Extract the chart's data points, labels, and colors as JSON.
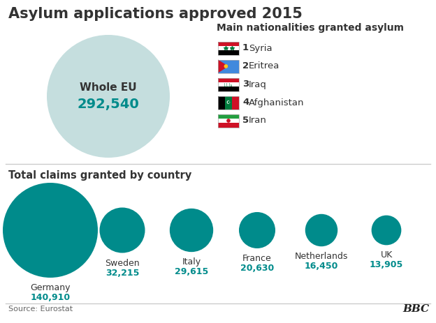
{
  "title": "Asylum applications approved 2015",
  "top_section_subtitle": "Main nationalities granted asylum",
  "whole_eu_label": "Whole EU",
  "whole_eu_value": "292,540",
  "eu_circle_color": "#c5dede",
  "teal_color": "#008b8b",
  "nationalities": [
    {
      "rank": "1",
      "name": "Syria"
    },
    {
      "rank": "2",
      "name": "Eritrea"
    },
    {
      "rank": "3",
      "name": "Iraq"
    },
    {
      "rank": "4",
      "name": "Afghanistan"
    },
    {
      "rank": "5",
      "name": "Iran"
    }
  ],
  "flag_data": {
    "Syria": {
      "stripes": [
        "#ce1126",
        "#ffffff",
        "#000000"
      ],
      "emblem": "star_green"
    },
    "Eritrea": {
      "stripes": [
        "#4189dd",
        "#4189dd",
        "#4189dd"
      ],
      "triangle": "#ce1126"
    },
    "Iraq": {
      "stripes": [
        "#ce1126",
        "#ffffff",
        "#000000"
      ],
      "emblem": "text_green"
    },
    "Afghanistan": {
      "stripes": [
        "#000000",
        "#007a3d",
        "#ce1126"
      ],
      "emblem": "mosque_white"
    },
    "Iran": {
      "stripes": [
        "#239f40",
        "#ffffff",
        "#ce1126"
      ],
      "emblem": "red_circle"
    }
  },
  "bottom_section_title": "Total claims granted by country",
  "countries": [
    "Germany",
    "Sweden",
    "Italy",
    "France",
    "Netherlands",
    "UK"
  ],
  "values": [
    140910,
    32215,
    29615,
    20630,
    16450,
    13905
  ],
  "value_labels": [
    "140,910",
    "32,215",
    "29,615",
    "20,630",
    "16,450",
    "13,905"
  ],
  "source_text": "Source: Eurostat",
  "bbc_text": "BBC",
  "bg_color": "#ffffff",
  "separator_color": "#cccccc",
  "title_fontsize": 15,
  "subtitle_fontsize": 10,
  "label_fontsize": 9,
  "value_fontsize": 9,
  "text_color": "#333333",
  "teal_circle_color": "#008b8b",
  "figw": 6.24,
  "figh": 4.63,
  "dpi": 100
}
